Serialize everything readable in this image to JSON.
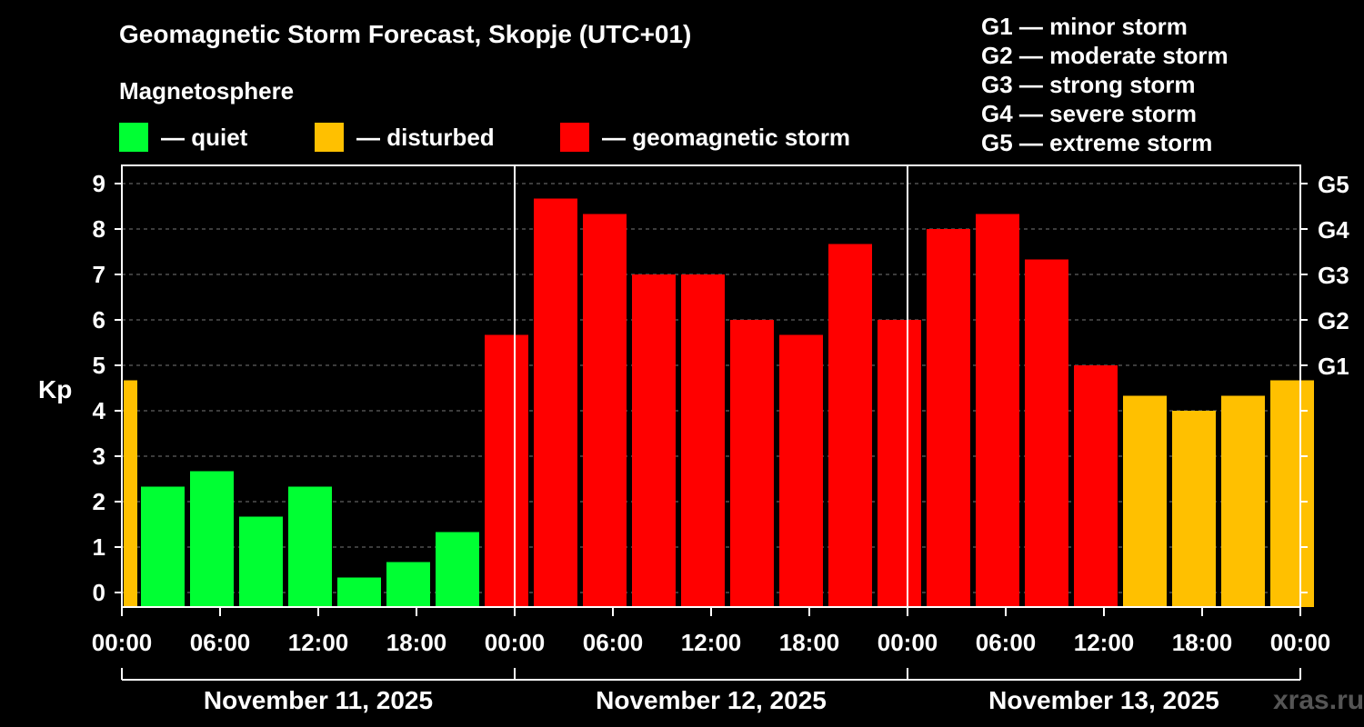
{
  "title": "Geomagnetic Storm Forecast, Skopje (UTC+01)",
  "subtitle": "Magnetosphere",
  "legend": [
    {
      "label": "— quiet",
      "color": "#00ff33"
    },
    {
      "label": "— disturbed",
      "color": "#ffc000"
    },
    {
      "label": "— geomagnetic storm",
      "color": "#ff0000"
    }
  ],
  "storm_scale": [
    "G1 — minor storm",
    "G2 — moderate storm",
    "G3 — strong storm",
    "G4 — severe storm",
    "G5 — extreme storm"
  ],
  "watermark": "xras.ru",
  "chart_data": {
    "type": "bar",
    "ylabel": "Kp",
    "ylim": [
      0,
      9
    ],
    "yticks": [
      "0",
      "1",
      "2",
      "3",
      "4",
      "5",
      "6",
      "7",
      "8",
      "9"
    ],
    "right_ticks": [
      {
        "kp": 5,
        "label": "G1"
      },
      {
        "kp": 6,
        "label": "G2"
      },
      {
        "kp": 7,
        "label": "G3"
      },
      {
        "kp": 8,
        "label": "G4"
      },
      {
        "kp": 9,
        "label": "G5"
      }
    ],
    "grid": "horizontal dashed",
    "x_tick_labels": [
      "00:00",
      "06:00",
      "12:00",
      "18:00",
      "00:00",
      "06:00",
      "12:00",
      "18:00",
      "00:00",
      "06:00",
      "12:00",
      "18:00",
      "00:00"
    ],
    "days": [
      "November 11, 2025",
      "November 12, 2025",
      "November 13, 2025"
    ],
    "colors": {
      "quiet": "#00ff33",
      "disturbed": "#ffc000",
      "storm": "#ff0000"
    },
    "values": [
      4.67,
      2.33,
      2.67,
      1.67,
      2.33,
      0.33,
      0.67,
      1.33,
      5.67,
      8.67,
      8.33,
      7.0,
      7.0,
      6.0,
      5.67,
      7.67,
      6.0,
      8.0,
      8.33,
      7.33,
      5.0,
      4.33,
      4.0,
      4.33,
      4.67
    ]
  }
}
